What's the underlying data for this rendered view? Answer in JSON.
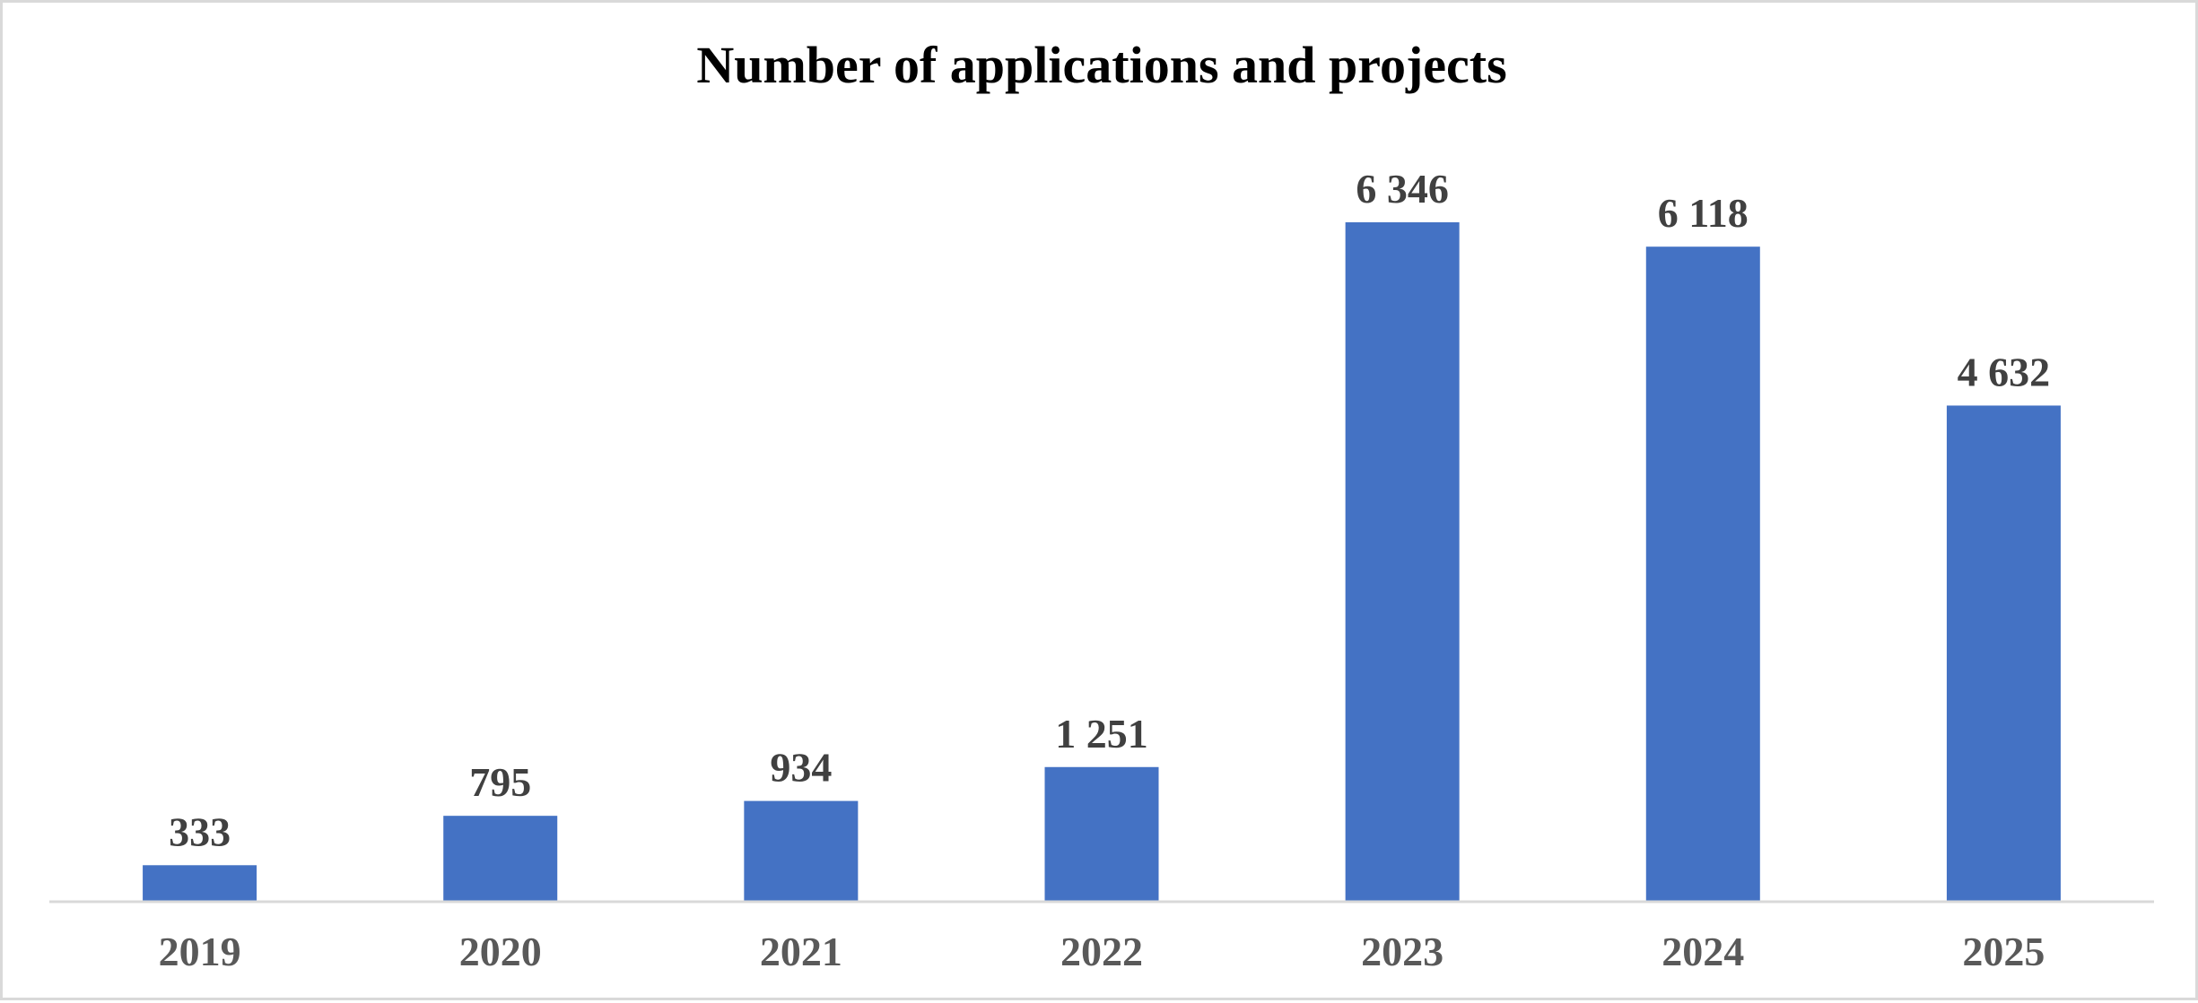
{
  "chart_data": {
    "type": "bar",
    "title": "Number of applications and projects",
    "xlabel": "",
    "ylabel": "",
    "categories": [
      "2019",
      "2020",
      "2021",
      "2022",
      "2023",
      "2024",
      "2025"
    ],
    "values": [
      333,
      795,
      934,
      1251,
      6346,
      6118,
      4632
    ],
    "value_labels": [
      "333",
      "795",
      "934",
      "1 251",
      "6 346",
      "6 118",
      "4 632"
    ],
    "ylim": [
      0,
      6346
    ],
    "grid": false,
    "legend": "none",
    "bar_color": "#4472C4",
    "axis_color": "#d9d9d9"
  }
}
